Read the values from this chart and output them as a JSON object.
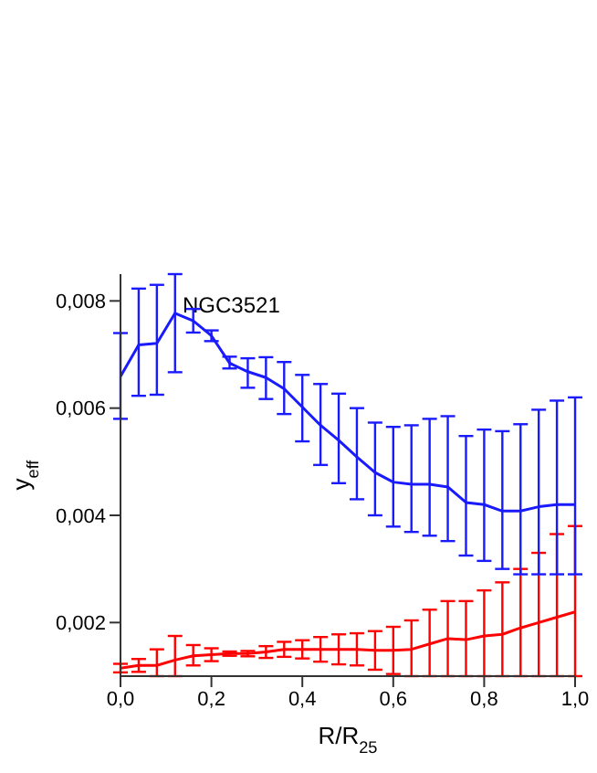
{
  "chart_data": {
    "type": "line",
    "xlabel": "R/R$_{25}$",
    "ylabel": "y$_{eff}$",
    "annotations": [
      "NGC3521"
    ],
    "x": [
      0,
      0.04,
      0.08,
      0.12,
      0.16,
      0.2,
      0.24,
      0.28,
      0.32,
      0.36,
      0.4,
      0.44,
      0.48,
      0.52,
      0.56,
      0.6,
      0.64,
      0.68,
      0.72,
      0.76,
      0.8,
      0.84,
      0.88,
      0.92,
      0.96,
      1.0
    ],
    "series": [
      {
        "color": "#ff0000",
        "values": [
          0.00115,
          0.0012,
          0.0012,
          0.0013,
          0.00138,
          0.0014,
          0.00142,
          0.00142,
          0.00145,
          0.0015,
          0.0015,
          0.0015,
          0.0015,
          0.0015,
          0.00148,
          0.00148,
          0.0015,
          0.0016,
          0.0017,
          0.00168,
          0.00175,
          0.00178,
          0.0019,
          0.002,
          0.0021,
          0.0022
        ],
        "errors": [
          8e-05,
          0.00012,
          [
            0.001,
            0.0015
          ],
          [
            0.001,
            0.00175
          ],
          [
            0.0012,
            0.00158
          ],
          [
            0.00128,
            0.00152
          ],
          [
            0.00138,
            0.00146
          ],
          [
            0.00137,
            0.00147
          ],
          [
            0.00134,
            0.00156
          ],
          [
            0.00136,
            0.00164
          ],
          [
            0.00133,
            0.00167
          ],
          [
            0.00127,
            0.00173
          ],
          [
            0.00122,
            0.00178
          ],
          [
            0.0012,
            0.0018
          ],
          [
            0.00112,
            0.00184
          ],
          [
            0.00104,
            0.00192
          ],
          [
            0.001,
            0.00204
          ],
          [
            0.001,
            0.00224
          ],
          [
            0.001,
            0.0024
          ],
          [
            0.001,
            0.0024
          ],
          [
            0.001,
            0.0026
          ],
          [
            0.001,
            0.00275
          ],
          [
            0.001,
            0.003
          ],
          [
            0.001,
            0.0033
          ],
          [
            0.001,
            0.00365
          ],
          [
            0.001,
            0.0038
          ]
        ]
      },
      {
        "color": "#1a1aff",
        "values": [
          0.00659,
          0.00718,
          0.00721,
          0.00777,
          0.00763,
          0.00735,
          0.00684,
          0.00668,
          0.00657,
          0.00636,
          0.00602,
          0.00568,
          0.0054,
          0.00509,
          0.0048,
          0.00462,
          0.00458,
          0.00458,
          0.00453,
          0.00424,
          0.0042,
          0.00408,
          0.00408,
          0.00416,
          0.0042,
          0.0042
        ],
        "errors": [
          [
            0.0058,
            0.0074
          ],
          [
            0.00623,
            0.00823
          ],
          [
            0.00625,
            0.0083
          ],
          [
            0.00667,
            0.0085
          ],
          [
            0.00741,
            0.00785
          ],
          [
            0.00725,
            0.00745
          ],
          [
            0.00674,
            0.00696
          ],
          [
            0.00638,
            0.00693
          ],
          [
            0.00617,
            0.00695
          ],
          [
            0.00589,
            0.00686
          ],
          [
            0.00538,
            0.00662
          ],
          [
            0.00494,
            0.00645
          ],
          [
            0.0046,
            0.00627
          ],
          [
            0.0043,
            0.006
          ],
          [
            0.004,
            0.00573
          ],
          [
            0.00379,
            0.00565
          ],
          [
            0.00369,
            0.00568
          ],
          [
            0.00362,
            0.0058
          ],
          [
            0.00352,
            0.00585
          ],
          [
            0.00325,
            0.00548
          ],
          [
            0.00315,
            0.0056
          ],
          [
            0.003,
            0.00557
          ],
          [
            0.0029,
            0.0057
          ],
          [
            0.0029,
            0.00597
          ],
          [
            0.0029,
            0.00614
          ],
          [
            0.0029,
            0.0062
          ]
        ]
      }
    ],
    "xlim": [
      0,
      1.0
    ],
    "ylim": [
      0.001,
      0.0085
    ],
    "xticks": [
      {
        "value": 0,
        "label": "0,0"
      },
      {
        "value": 0.2,
        "label": "0,2"
      },
      {
        "value": 0.4,
        "label": "0,4"
      },
      {
        "value": 0.6,
        "label": "0,6"
      },
      {
        "value": 0.8,
        "label": "0,8"
      },
      {
        "value": 1.0,
        "label": "1,0"
      }
    ],
    "yticks": [
      {
        "value": 0.002,
        "label": "0,002"
      },
      {
        "value": 0.004,
        "label": "0,004"
      },
      {
        "value": 0.006,
        "label": "0,006"
      },
      {
        "value": 0.008,
        "label": "0,008"
      }
    ],
    "grid": false,
    "marker": "none",
    "line_style": "solid"
  }
}
